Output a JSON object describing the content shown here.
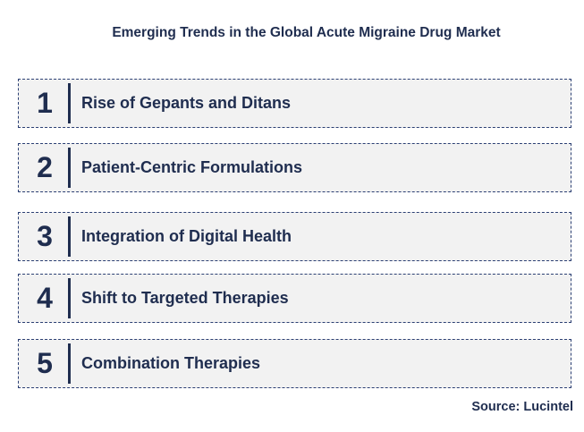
{
  "title": "Emerging Trends in the Global Acute Migraine Drug Market",
  "trends": [
    {
      "number": "1",
      "label": "Rise of Gepants and Ditans"
    },
    {
      "number": "2",
      "label": "Patient-Centric Formulations"
    },
    {
      "number": "3",
      "label": "Integration of Digital Health"
    },
    {
      "number": "4",
      "label": "Shift to Targeted Therapies"
    },
    {
      "number": "5",
      "label": "Combination Therapies"
    }
  ],
  "source": "Source: Lucintel",
  "colors": {
    "text": "#1f2d4f",
    "box_fill": "#f2f2f2",
    "box_border": "#2b3f73"
  }
}
